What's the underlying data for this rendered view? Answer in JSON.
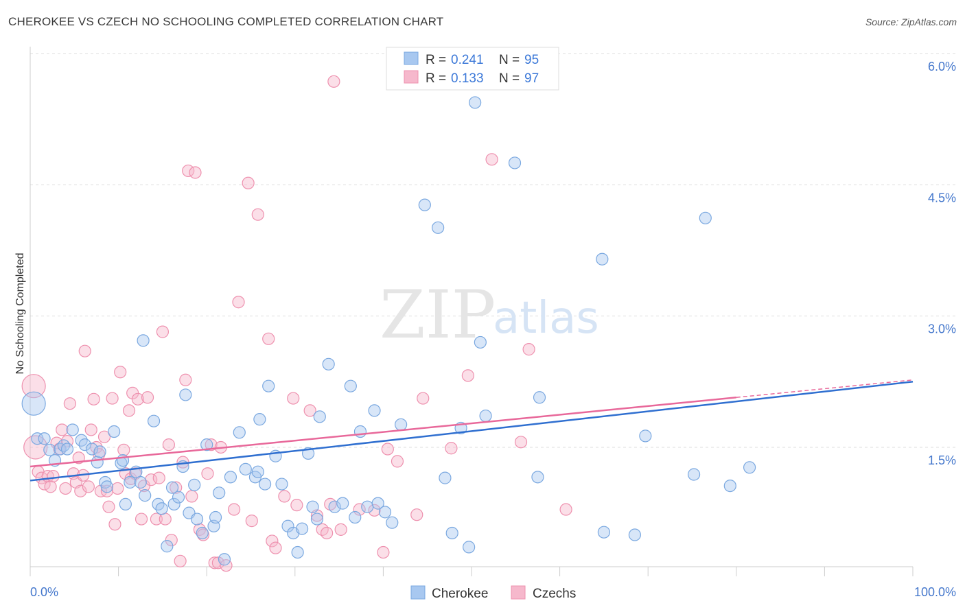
{
  "header": {
    "title": "CHEROKEE VS CZECH NO SCHOOLING COMPLETED CORRELATION CHART",
    "source": "Source: ZipAtlas.com"
  },
  "watermark": {
    "zip": "ZIP",
    "atlas": "atlas"
  },
  "legend": {
    "rows": [
      {
        "r_label": "R = ",
        "r_value": "0.241",
        "n_label": "N = ",
        "n_value": "95",
        "color": "#a8c8f0"
      },
      {
        "r_label": "R = ",
        "r_value": "0.133",
        "n_label": "N = ",
        "n_value": "97",
        "color": "#f6b8cc"
      }
    ]
  },
  "bottom_legend": {
    "items": [
      {
        "label": "Cherokee",
        "color": "#a8c8f0"
      },
      {
        "label": "Czechs",
        "color": "#f6b8cc"
      }
    ]
  },
  "colors": {
    "cherokee_fill": "#a8c8f0",
    "cherokee_stroke": "#7aa8e0",
    "cherokee_line": "#2f6fd0",
    "czech_fill": "#f6b8cc",
    "czech_stroke": "#ee90ae",
    "czech_line": "#e8689a",
    "tick_label": "#4477cc",
    "grid": "#dddddd"
  },
  "chart_data": {
    "type": "scatter",
    "title": "CHEROKEE VS CZECH NO SCHOOLING COMPLETED CORRELATION CHART",
    "xlabel": "",
    "ylabel": "No Schooling Completed",
    "xlim": [
      0,
      100
    ],
    "ylim": [
      0,
      6.3
    ],
    "x_tick_labels": [
      {
        "value": 0,
        "label": "0.0%"
      },
      {
        "value": 100,
        "label": "100.0%"
      }
    ],
    "y_tick_labels": [
      {
        "value": 1.5,
        "label": "1.5%"
      },
      {
        "value": 3.0,
        "label": "3.0%"
      },
      {
        "value": 4.5,
        "label": "4.5%"
      },
      {
        "value": 6.0,
        "label": "6.0%"
      }
    ],
    "grid": "horizontal dashed",
    "legend_position": "top-center",
    "series": [
      {
        "name": "Cherokee",
        "trend": {
          "x": [
            0,
            100
          ],
          "y": [
            1.12,
            2.25
          ],
          "dashed_from": null
        },
        "points": [
          {
            "x": 0.4,
            "y": 2.0,
            "big": true
          },
          {
            "x": 0.8,
            "y": 1.6
          },
          {
            "x": 1.6,
            "y": 1.6
          },
          {
            "x": 2.2,
            "y": 1.47
          },
          {
            "x": 2.8,
            "y": 1.35
          },
          {
            "x": 3.4,
            "y": 1.48
          },
          {
            "x": 3.8,
            "y": 1.52
          },
          {
            "x": 4.2,
            "y": 1.48
          },
          {
            "x": 4.8,
            "y": 1.7
          },
          {
            "x": 5.8,
            "y": 1.58
          },
          {
            "x": 6.2,
            "y": 1.53
          },
          {
            "x": 7.0,
            "y": 1.48
          },
          {
            "x": 7.6,
            "y": 1.33
          },
          {
            "x": 7.9,
            "y": 1.45
          },
          {
            "x": 8.5,
            "y": 1.1
          },
          {
            "x": 8.7,
            "y": 1.05
          },
          {
            "x": 9.5,
            "y": 1.68
          },
          {
            "x": 10.3,
            "y": 1.32
          },
          {
            "x": 10.5,
            "y": 1.35
          },
          {
            "x": 10.8,
            "y": 0.85
          },
          {
            "x": 11.3,
            "y": 1.1
          },
          {
            "x": 12.0,
            "y": 1.22
          },
          {
            "x": 12.5,
            "y": 1.1
          },
          {
            "x": 12.8,
            "y": 2.72
          },
          {
            "x": 13.0,
            "y": 0.95
          },
          {
            "x": 14.0,
            "y": 1.8
          },
          {
            "x": 14.5,
            "y": 0.85
          },
          {
            "x": 14.9,
            "y": 0.8
          },
          {
            "x": 15.5,
            "y": 0.37
          },
          {
            "x": 16.1,
            "y": 1.04
          },
          {
            "x": 16.3,
            "y": 0.85
          },
          {
            "x": 16.8,
            "y": 0.93
          },
          {
            "x": 17.3,
            "y": 1.28
          },
          {
            "x": 17.6,
            "y": 2.1
          },
          {
            "x": 18.0,
            "y": 0.75
          },
          {
            "x": 18.6,
            "y": 1.07
          },
          {
            "x": 18.9,
            "y": 0.68
          },
          {
            "x": 19.5,
            "y": 0.52
          },
          {
            "x": 20.0,
            "y": 1.53
          },
          {
            "x": 20.8,
            "y": 0.6
          },
          {
            "x": 21.0,
            "y": 0.7
          },
          {
            "x": 21.4,
            "y": 0.98
          },
          {
            "x": 22.0,
            "y": 0.22
          },
          {
            "x": 22.7,
            "y": 1.16
          },
          {
            "x": 23.7,
            "y": 1.67
          },
          {
            "x": 24.4,
            "y": 1.25
          },
          {
            "x": 25.5,
            "y": 1.16
          },
          {
            "x": 25.8,
            "y": 1.22
          },
          {
            "x": 26.0,
            "y": 1.82
          },
          {
            "x": 26.6,
            "y": 1.08
          },
          {
            "x": 27.0,
            "y": 2.2
          },
          {
            "x": 27.8,
            "y": 1.4
          },
          {
            "x": 28.5,
            "y": 1.08
          },
          {
            "x": 29.2,
            "y": 0.6
          },
          {
            "x": 29.8,
            "y": 0.52
          },
          {
            "x": 30.3,
            "y": 0.3
          },
          {
            "x": 30.8,
            "y": 0.57
          },
          {
            "x": 31.5,
            "y": 1.43
          },
          {
            "x": 32.0,
            "y": 0.82
          },
          {
            "x": 32.5,
            "y": 0.68
          },
          {
            "x": 32.8,
            "y": 1.85
          },
          {
            "x": 33.8,
            "y": 2.45
          },
          {
            "x": 34.5,
            "y": 0.82
          },
          {
            "x": 35.4,
            "y": 0.86
          },
          {
            "x": 36.3,
            "y": 2.2
          },
          {
            "x": 36.8,
            "y": 0.7
          },
          {
            "x": 37.4,
            "y": 1.68
          },
          {
            "x": 38.2,
            "y": 0.82
          },
          {
            "x": 39.0,
            "y": 1.92
          },
          {
            "x": 39.4,
            "y": 0.86
          },
          {
            "x": 40.2,
            "y": 0.76
          },
          {
            "x": 41.0,
            "y": 0.64
          },
          {
            "x": 42.0,
            "y": 1.76
          },
          {
            "x": 44.7,
            "y": 4.27
          },
          {
            "x": 46.2,
            "y": 4.01
          },
          {
            "x": 47.0,
            "y": 1.15
          },
          {
            "x": 47.8,
            "y": 0.52
          },
          {
            "x": 48.8,
            "y": 1.72
          },
          {
            "x": 49.7,
            "y": 0.36
          },
          {
            "x": 50.4,
            "y": 5.44
          },
          {
            "x": 51.0,
            "y": 2.7
          },
          {
            "x": 51.6,
            "y": 1.86
          },
          {
            "x": 54.9,
            "y": 4.75
          },
          {
            "x": 57.5,
            "y": 1.16
          },
          {
            "x": 57.7,
            "y": 2.07
          },
          {
            "x": 64.8,
            "y": 3.65
          },
          {
            "x": 65.0,
            "y": 0.53
          },
          {
            "x": 68.5,
            "y": 0.5
          },
          {
            "x": 69.7,
            "y": 1.63
          },
          {
            "x": 75.2,
            "y": 1.19
          },
          {
            "x": 76.5,
            "y": 4.12
          },
          {
            "x": 79.3,
            "y": 1.06
          },
          {
            "x": 81.5,
            "y": 1.27
          }
        ]
      },
      {
        "name": "Czechs",
        "trend": {
          "x": [
            0,
            80,
            100
          ],
          "y": [
            1.28,
            2.07,
            2.27
          ],
          "dashed_from": 80
        },
        "points": [
          {
            "x": 0.4,
            "y": 2.2,
            "big": true
          },
          {
            "x": 0.6,
            "y": 1.5,
            "big": true
          },
          {
            "x": 0.9,
            "y": 1.22
          },
          {
            "x": 1.3,
            "y": 1.15
          },
          {
            "x": 1.6,
            "y": 1.08
          },
          {
            "x": 2.0,
            "y": 1.17
          },
          {
            "x": 2.3,
            "y": 1.05
          },
          {
            "x": 2.6,
            "y": 1.17
          },
          {
            "x": 3.0,
            "y": 1.55
          },
          {
            "x": 3.3,
            "y": 1.48
          },
          {
            "x": 3.6,
            "y": 1.7
          },
          {
            "x": 4.0,
            "y": 1.03
          },
          {
            "x": 4.2,
            "y": 1.57
          },
          {
            "x": 4.5,
            "y": 2.0
          },
          {
            "x": 4.9,
            "y": 1.2
          },
          {
            "x": 5.2,
            "y": 1.1
          },
          {
            "x": 5.5,
            "y": 1.38
          },
          {
            "x": 5.7,
            "y": 1.0
          },
          {
            "x": 6.0,
            "y": 1.18
          },
          {
            "x": 6.2,
            "y": 2.6
          },
          {
            "x": 6.6,
            "y": 1.05
          },
          {
            "x": 6.9,
            "y": 1.7
          },
          {
            "x": 7.2,
            "y": 2.05
          },
          {
            "x": 7.5,
            "y": 1.5
          },
          {
            "x": 7.8,
            "y": 1.42
          },
          {
            "x": 8.0,
            "y": 1.0
          },
          {
            "x": 8.4,
            "y": 1.62
          },
          {
            "x": 8.7,
            "y": 1.0
          },
          {
            "x": 8.9,
            "y": 0.82
          },
          {
            "x": 9.3,
            "y": 2.06
          },
          {
            "x": 9.6,
            "y": 0.62
          },
          {
            "x": 9.9,
            "y": 1.03
          },
          {
            "x": 10.2,
            "y": 2.36
          },
          {
            "x": 10.6,
            "y": 1.47
          },
          {
            "x": 10.8,
            "y": 1.2
          },
          {
            "x": 11.2,
            "y": 1.92
          },
          {
            "x": 11.4,
            "y": 1.14
          },
          {
            "x": 11.6,
            "y": 2.12
          },
          {
            "x": 11.9,
            "y": 1.2
          },
          {
            "x": 12.2,
            "y": 2.05
          },
          {
            "x": 12.6,
            "y": 0.68
          },
          {
            "x": 12.9,
            "y": 1.06
          },
          {
            "x": 13.3,
            "y": 2.07
          },
          {
            "x": 13.7,
            "y": 1.13
          },
          {
            "x": 14.3,
            "y": 0.68
          },
          {
            "x": 14.6,
            "y": 1.15
          },
          {
            "x": 15.0,
            "y": 2.82
          },
          {
            "x": 15.3,
            "y": 0.68
          },
          {
            "x": 15.7,
            "y": 1.53
          },
          {
            "x": 16.0,
            "y": 0.44
          },
          {
            "x": 16.5,
            "y": 1.04
          },
          {
            "x": 17.0,
            "y": 0.2
          },
          {
            "x": 17.3,
            "y": 1.33
          },
          {
            "x": 17.6,
            "y": 2.27
          },
          {
            "x": 17.9,
            "y": 4.66
          },
          {
            "x": 18.3,
            "y": 0.94
          },
          {
            "x": 18.7,
            "y": 4.64
          },
          {
            "x": 19.2,
            "y": 0.56
          },
          {
            "x": 19.6,
            "y": 0.5
          },
          {
            "x": 20.1,
            "y": 1.2
          },
          {
            "x": 20.5,
            "y": 1.53
          },
          {
            "x": 20.9,
            "y": 0.18
          },
          {
            "x": 21.3,
            "y": 0.18
          },
          {
            "x": 21.6,
            "y": 1.5
          },
          {
            "x": 22.2,
            "y": 0.15
          },
          {
            "x": 23.1,
            "y": 0.79
          },
          {
            "x": 23.6,
            "y": 3.16
          },
          {
            "x": 24.7,
            "y": 4.52
          },
          {
            "x": 25.1,
            "y": 0.66
          },
          {
            "x": 25.8,
            "y": 4.16
          },
          {
            "x": 27.0,
            "y": 2.74
          },
          {
            "x": 27.4,
            "y": 0.43
          },
          {
            "x": 27.8,
            "y": 0.35
          },
          {
            "x": 28.8,
            "y": 0.94
          },
          {
            "x": 29.8,
            "y": 2.06
          },
          {
            "x": 30.2,
            "y": 0.84
          },
          {
            "x": 31.7,
            "y": 1.92
          },
          {
            "x": 32.5,
            "y": 0.72
          },
          {
            "x": 33.1,
            "y": 0.56
          },
          {
            "x": 33.6,
            "y": 0.52
          },
          {
            "x": 34.0,
            "y": 0.85
          },
          {
            "x": 34.4,
            "y": 5.68
          },
          {
            "x": 35.2,
            "y": 0.56
          },
          {
            "x": 37.3,
            "y": 0.79
          },
          {
            "x": 39.0,
            "y": 0.78
          },
          {
            "x": 40.0,
            "y": 0.3
          },
          {
            "x": 40.5,
            "y": 1.48
          },
          {
            "x": 41.6,
            "y": 1.34
          },
          {
            "x": 43.8,
            "y": 0.73
          },
          {
            "x": 44.5,
            "y": 2.06
          },
          {
            "x": 47.7,
            "y": 1.49
          },
          {
            "x": 49.6,
            "y": 2.32
          },
          {
            "x": 52.3,
            "y": 4.79
          },
          {
            "x": 55.6,
            "y": 1.56
          },
          {
            "x": 56.5,
            "y": 2.62
          },
          {
            "x": 60.7,
            "y": 0.79
          }
        ]
      }
    ]
  }
}
